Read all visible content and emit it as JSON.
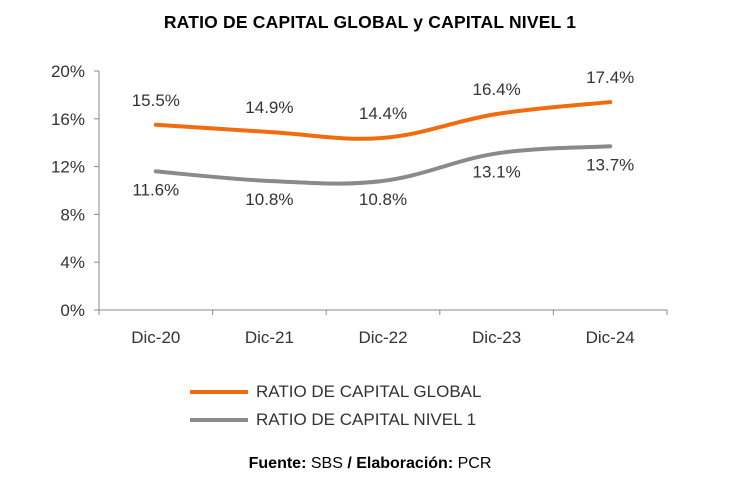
{
  "title": "RATIO DE CAPITAL GLOBAL y CAPITAL NIVEL 1",
  "source": {
    "label1": "Fuente:",
    "value1": "SBS",
    "sep": "/",
    "label2": "Elaboración:",
    "value2": "PCR"
  },
  "colors": {
    "global": "#f26b0f",
    "nivel1": "#8a8a8a",
    "axis": "#888888"
  },
  "chart_data": {
    "type": "line",
    "title": "RATIO DE CAPITAL GLOBAL y CAPITAL NIVEL 1",
    "categories": [
      "Dic-20",
      "Dic-21",
      "Dic-22",
      "Dic-23",
      "Dic-24"
    ],
    "ylim": [
      0,
      20
    ],
    "yticks": [
      "0%",
      "4%",
      "8%",
      "12%",
      "16%",
      "20%"
    ],
    "ytick_values": [
      0,
      4,
      8,
      12,
      16,
      20
    ],
    "grid": false,
    "legend": "bottom",
    "series": [
      {
        "name": "RATIO DE CAPITAL GLOBAL",
        "values": [
          15.5,
          14.9,
          14.4,
          16.4,
          17.4
        ],
        "labels": [
          "15.5%",
          "14.9%",
          "14.4%",
          "16.4%",
          "17.4%"
        ],
        "color": "#f26b0f"
      },
      {
        "name": "RATIO DE CAPITAL NIVEL 1",
        "values": [
          11.6,
          10.8,
          10.8,
          13.1,
          13.7
        ],
        "labels": [
          "11.6%",
          "10.8%",
          "10.8%",
          "13.1%",
          "13.7%"
        ],
        "color": "#8a8a8a"
      }
    ]
  }
}
